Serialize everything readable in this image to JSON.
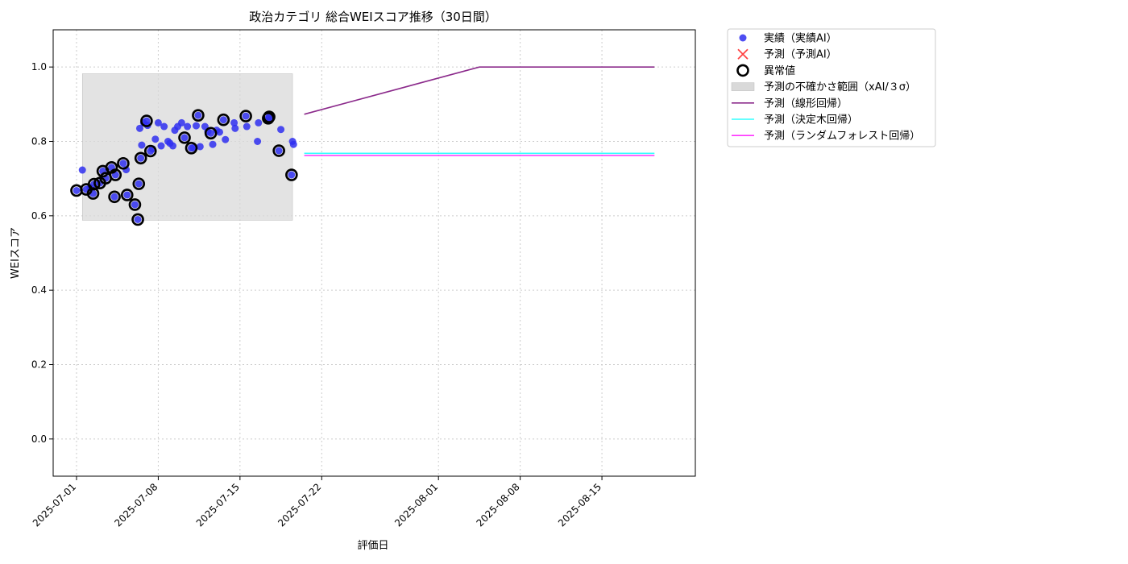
{
  "chart_data": {
    "type": "scatter",
    "title": "政治カテゴリ 総合WEIスコア推移（30日間）",
    "xlabel": "評価日",
    "ylabel": "WEIスコア",
    "xlim": [
      "2025-06-29",
      "2025-08-23"
    ],
    "ylim": [
      -0.1,
      1.1
    ],
    "x_ticks": [
      "2025-07-01",
      "2025-07-08",
      "2025-07-15",
      "2025-07-22",
      "2025-08-01",
      "2025-08-08",
      "2025-08-15"
    ],
    "y_ticks": [
      0.0,
      0.2,
      0.4,
      0.6,
      0.8,
      1.0
    ],
    "y_tick_labels": [
      "0.0",
      "0.2",
      "0.4",
      "0.6",
      "0.8",
      "1.0"
    ],
    "grid": true,
    "legend_position": "outside-top-right",
    "colors": {
      "actual": "#2f2ff0",
      "predicted": "#ff4444",
      "anomaly": "#000000",
      "uncertainty": "#d9d9d9",
      "linear": "#8b2a8b",
      "tree": "#33ffff",
      "forest": "#ff33ff"
    },
    "legend": [
      {
        "key": "actual",
        "label": "実績（実績AI）"
      },
      {
        "key": "predicted",
        "label": "予測（予測AI）"
      },
      {
        "key": "anomaly",
        "label": "異常値"
      },
      {
        "key": "uncertainty",
        "label": "予測の不確かさ範囲（xAI/３σ）"
      },
      {
        "key": "linear",
        "label": "予測（線形回帰）"
      },
      {
        "key": "tree",
        "label": "予測（決定木回帰）"
      },
      {
        "key": "forest",
        "label": "予測（ランダムフォレスト回帰）"
      }
    ],
    "uncertainty_band": {
      "x": [
        "2025-07-01T12:00",
        "2025-07-19T12:00"
      ],
      "y": [
        0.588,
        0.982
      ]
    },
    "actual": [
      [
        "2025-07-01T00:00",
        0.668
      ],
      [
        "2025-07-01T12:00",
        0.723
      ],
      [
        "2025-07-01T20:00",
        0.671
      ],
      [
        "2025-07-02T04:00",
        0.676
      ],
      [
        "2025-07-02T10:00",
        0.66
      ],
      [
        "2025-07-02T12:00",
        0.685
      ],
      [
        "2025-07-03T00:00",
        0.688
      ],
      [
        "2025-07-03T06:00",
        0.72
      ],
      [
        "2025-07-03T12:00",
        0.701
      ],
      [
        "2025-07-04T00:00",
        0.73
      ],
      [
        "2025-07-04T06:00",
        0.651
      ],
      [
        "2025-07-04T08:00",
        0.71
      ],
      [
        "2025-07-05T00:00",
        0.741
      ],
      [
        "2025-07-05T06:00",
        0.724
      ],
      [
        "2025-07-05T08:00",
        0.656
      ],
      [
        "2025-07-06T00:00",
        0.63
      ],
      [
        "2025-07-06T06:00",
        0.59
      ],
      [
        "2025-07-06T08:00",
        0.686
      ],
      [
        "2025-07-06T10:00",
        0.835
      ],
      [
        "2025-07-06T12:00",
        0.755
      ],
      [
        "2025-07-06T14:00",
        0.79
      ],
      [
        "2025-07-06T18:00",
        0.85
      ],
      [
        "2025-07-07T00:00",
        0.855
      ],
      [
        "2025-07-07T02:00",
        0.843
      ],
      [
        "2025-07-07T08:00",
        0.774
      ],
      [
        "2025-07-07T12:00",
        0.78
      ],
      [
        "2025-07-07T18:00",
        0.806
      ],
      [
        "2025-07-08T00:00",
        0.85
      ],
      [
        "2025-07-08T06:00",
        0.788
      ],
      [
        "2025-07-08T12:00",
        0.84
      ],
      [
        "2025-07-08T20:00",
        0.8
      ],
      [
        "2025-07-09T00:00",
        0.795
      ],
      [
        "2025-07-09T06:00",
        0.788
      ],
      [
        "2025-07-09T10:00",
        0.83
      ],
      [
        "2025-07-09T16:00",
        0.84
      ],
      [
        "2025-07-10T00:00",
        0.85
      ],
      [
        "2025-07-10T06:00",
        0.81
      ],
      [
        "2025-07-10T12:00",
        0.84
      ],
      [
        "2025-07-10T20:00",
        0.782
      ],
      [
        "2025-07-11T00:00",
        0.783
      ],
      [
        "2025-07-11T06:00",
        0.842
      ],
      [
        "2025-07-11T10:00",
        0.87
      ],
      [
        "2025-07-11T14:00",
        0.786
      ],
      [
        "2025-07-12T00:00",
        0.84
      ],
      [
        "2025-07-12T06:00",
        0.826
      ],
      [
        "2025-07-12T12:00",
        0.822
      ],
      [
        "2025-07-12T16:00",
        0.792
      ],
      [
        "2025-07-13T00:00",
        0.83
      ],
      [
        "2025-07-13T06:00",
        0.825
      ],
      [
        "2025-07-13T14:00",
        0.858
      ],
      [
        "2025-07-13T18:00",
        0.805
      ],
      [
        "2025-07-14T12:00",
        0.85
      ],
      [
        "2025-07-14T14:00",
        0.835
      ],
      [
        "2025-07-15T12:00",
        0.868
      ],
      [
        "2025-07-15T14:00",
        0.84
      ],
      [
        "2025-07-16T12:00",
        0.8
      ],
      [
        "2025-07-16T14:00",
        0.85
      ],
      [
        "2025-07-17T10:00",
        0.862
      ],
      [
        "2025-07-17T12:00",
        0.866
      ],
      [
        "2025-07-17T14:00",
        0.858
      ],
      [
        "2025-07-18T08:00",
        0.775
      ],
      [
        "2025-07-18T12:00",
        0.832
      ],
      [
        "2025-07-19T10:00",
        0.71
      ],
      [
        "2025-07-19T12:00",
        0.8
      ],
      [
        "2025-07-19T14:00",
        0.792
      ]
    ],
    "anomalies": [
      [
        "2025-07-01T00:00",
        0.668
      ],
      [
        "2025-07-01T20:00",
        0.671
      ],
      [
        "2025-07-02T10:00",
        0.66
      ],
      [
        "2025-07-02T12:00",
        0.685
      ],
      [
        "2025-07-03T00:00",
        0.688
      ],
      [
        "2025-07-03T06:00",
        0.72
      ],
      [
        "2025-07-03T12:00",
        0.701
      ],
      [
        "2025-07-04T00:00",
        0.73
      ],
      [
        "2025-07-04T06:00",
        0.651
      ],
      [
        "2025-07-04T08:00",
        0.71
      ],
      [
        "2025-07-05T00:00",
        0.741
      ],
      [
        "2025-07-05T08:00",
        0.656
      ],
      [
        "2025-07-06T00:00",
        0.63
      ],
      [
        "2025-07-06T06:00",
        0.59
      ],
      [
        "2025-07-06T08:00",
        0.686
      ],
      [
        "2025-07-06T12:00",
        0.755
      ],
      [
        "2025-07-07T00:00",
        0.855
      ],
      [
        "2025-07-07T08:00",
        0.774
      ],
      [
        "2025-07-10T06:00",
        0.81
      ],
      [
        "2025-07-10T20:00",
        0.782
      ],
      [
        "2025-07-11T10:00",
        0.87
      ],
      [
        "2025-07-12T12:00",
        0.822
      ],
      [
        "2025-07-13T14:00",
        0.858
      ],
      [
        "2025-07-15T12:00",
        0.868
      ],
      [
        "2025-07-17T10:00",
        0.862
      ],
      [
        "2025-07-17T12:00",
        0.866
      ],
      [
        "2025-07-18T08:00",
        0.775
      ],
      [
        "2025-07-19T10:00",
        0.71
      ]
    ],
    "linear": [
      [
        "2025-07-20T12:00",
        0.873
      ],
      [
        "2025-08-04T12:00",
        1.0
      ],
      [
        "2025-08-19T12:00",
        1.0
      ]
    ],
    "tree": [
      [
        "2025-07-20T12:00",
        0.768
      ],
      [
        "2025-08-19T12:00",
        0.768
      ]
    ],
    "forest": [
      [
        "2025-07-20T12:00",
        0.762
      ],
      [
        "2025-08-19T12:00",
        0.762
      ]
    ]
  }
}
